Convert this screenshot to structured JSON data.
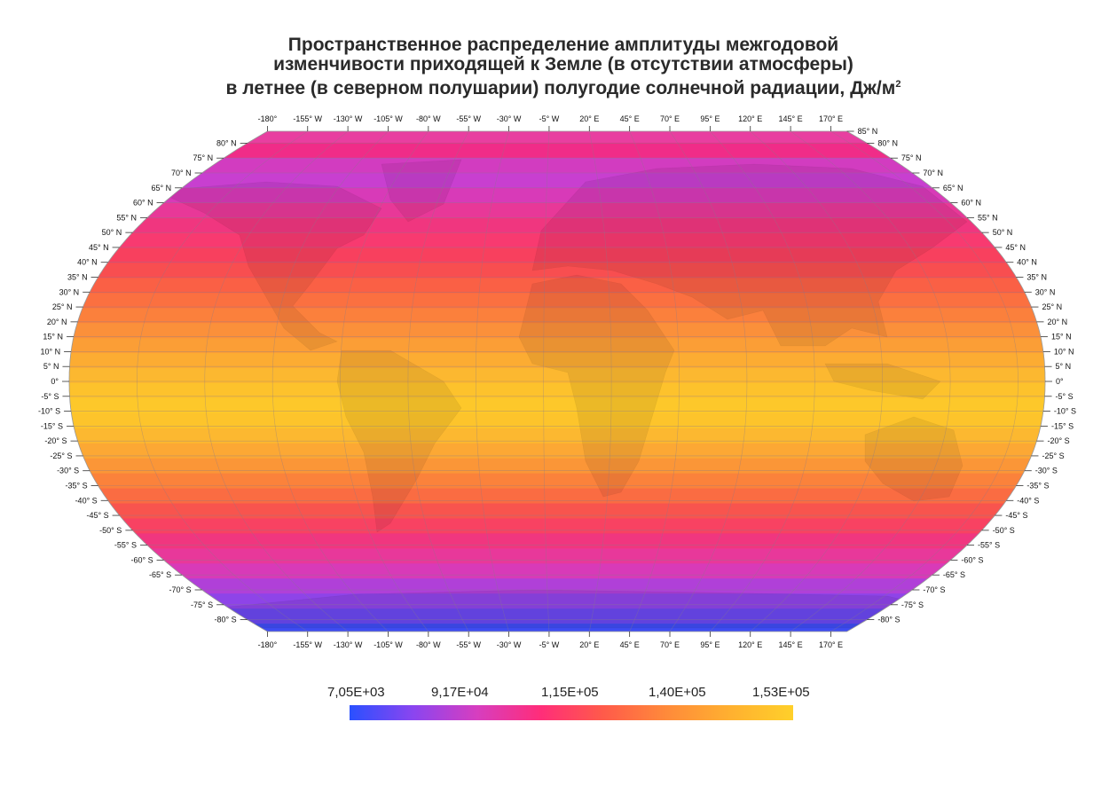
{
  "title": {
    "line1": "Пространственное распределение амплитуды межгодовой",
    "line2": "изменчивости приходящей к Земле (в отсутствии атмосферы)",
    "line3": "в летнее (в северном полушарии) полугодие солнечной радиации, Дж/м",
    "line3_sup": "2"
  },
  "map": {
    "projection": "Robinson",
    "longitude_labels": [
      "-180°",
      "-155° W",
      "-130° W",
      "-105° W",
      "-80° W",
      "-55° W",
      "-30° W",
      "-5° W",
      "20° E",
      "45° E",
      "70° E",
      "95° E",
      "120° E",
      "145° E",
      "170° E"
    ],
    "latitude_labels_left": [
      "80° N",
      "75° N",
      "70° N",
      "65° N",
      "60° N",
      "55° N",
      "50° N",
      "45° N",
      "40° N",
      "35° N",
      "30° N",
      "25° N",
      "20° N",
      "15° N",
      "10° N",
      "5° N",
      "0°",
      "-5° S",
      "-10° S",
      "-15° S",
      "-20° S",
      "-25° S",
      "-30° S",
      "-35° S",
      "-40° S",
      "-45° S",
      "-50° S",
      "-55° S",
      "-60° S",
      "-65° S",
      "-70° S",
      "-75° S",
      "-80° S"
    ],
    "latitude_labels_right": [
      "85° N",
      "80° N",
      "75° N",
      "70° N",
      "65° N",
      "60° N",
      "55° N",
      "50° N",
      "45° N",
      "40° N",
      "35° N",
      "30° N",
      "25° N",
      "20° N",
      "15° N",
      "10° N",
      "5° N",
      "0°",
      "-5° S",
      "-10° S",
      "-15° S",
      "-20° S",
      "-25° S",
      "-30° S",
      "-35° S",
      "-40° S",
      "-45° S",
      "-50° S",
      "-55° S",
      "-60° S",
      "-65° S",
      "-70° S",
      "-75° S",
      "-80° S"
    ],
    "band_colors_north_to_south": [
      "#e83fa0",
      "#f02c88",
      "#d23cc0",
      "#c83fd0",
      "#d83ab8",
      "#e83898",
      "#f0367f",
      "#f83a70",
      "#f8405e",
      "#f84e50",
      "#fa6045",
      "#fb7040",
      "#fb803c",
      "#fb903a",
      "#fb9e36",
      "#fcac32",
      "#fcb830",
      "#fdc22c",
      "#fdc82a",
      "#fdc42b",
      "#fcb830",
      "#fca834",
      "#fb9637",
      "#fb823b",
      "#fa6c42",
      "#f8544e",
      "#f84262",
      "#f0367f",
      "#e8389a",
      "#d83ab8",
      "#b040d8",
      "#8e44e8",
      "#6a48ee",
      "#3e4cf2"
    ]
  },
  "legend": {
    "labels": [
      "7,05E+03",
      "9,17E+04",
      "1,15E+05",
      "1,40E+05",
      "1,53E+05"
    ],
    "colors": [
      "#2a50ff",
      "#8a45f0",
      "#d63ec0",
      "#ff2d7a",
      "#ff5a4a",
      "#ff8a3a",
      "#ffb030",
      "#ffd02a"
    ]
  }
}
